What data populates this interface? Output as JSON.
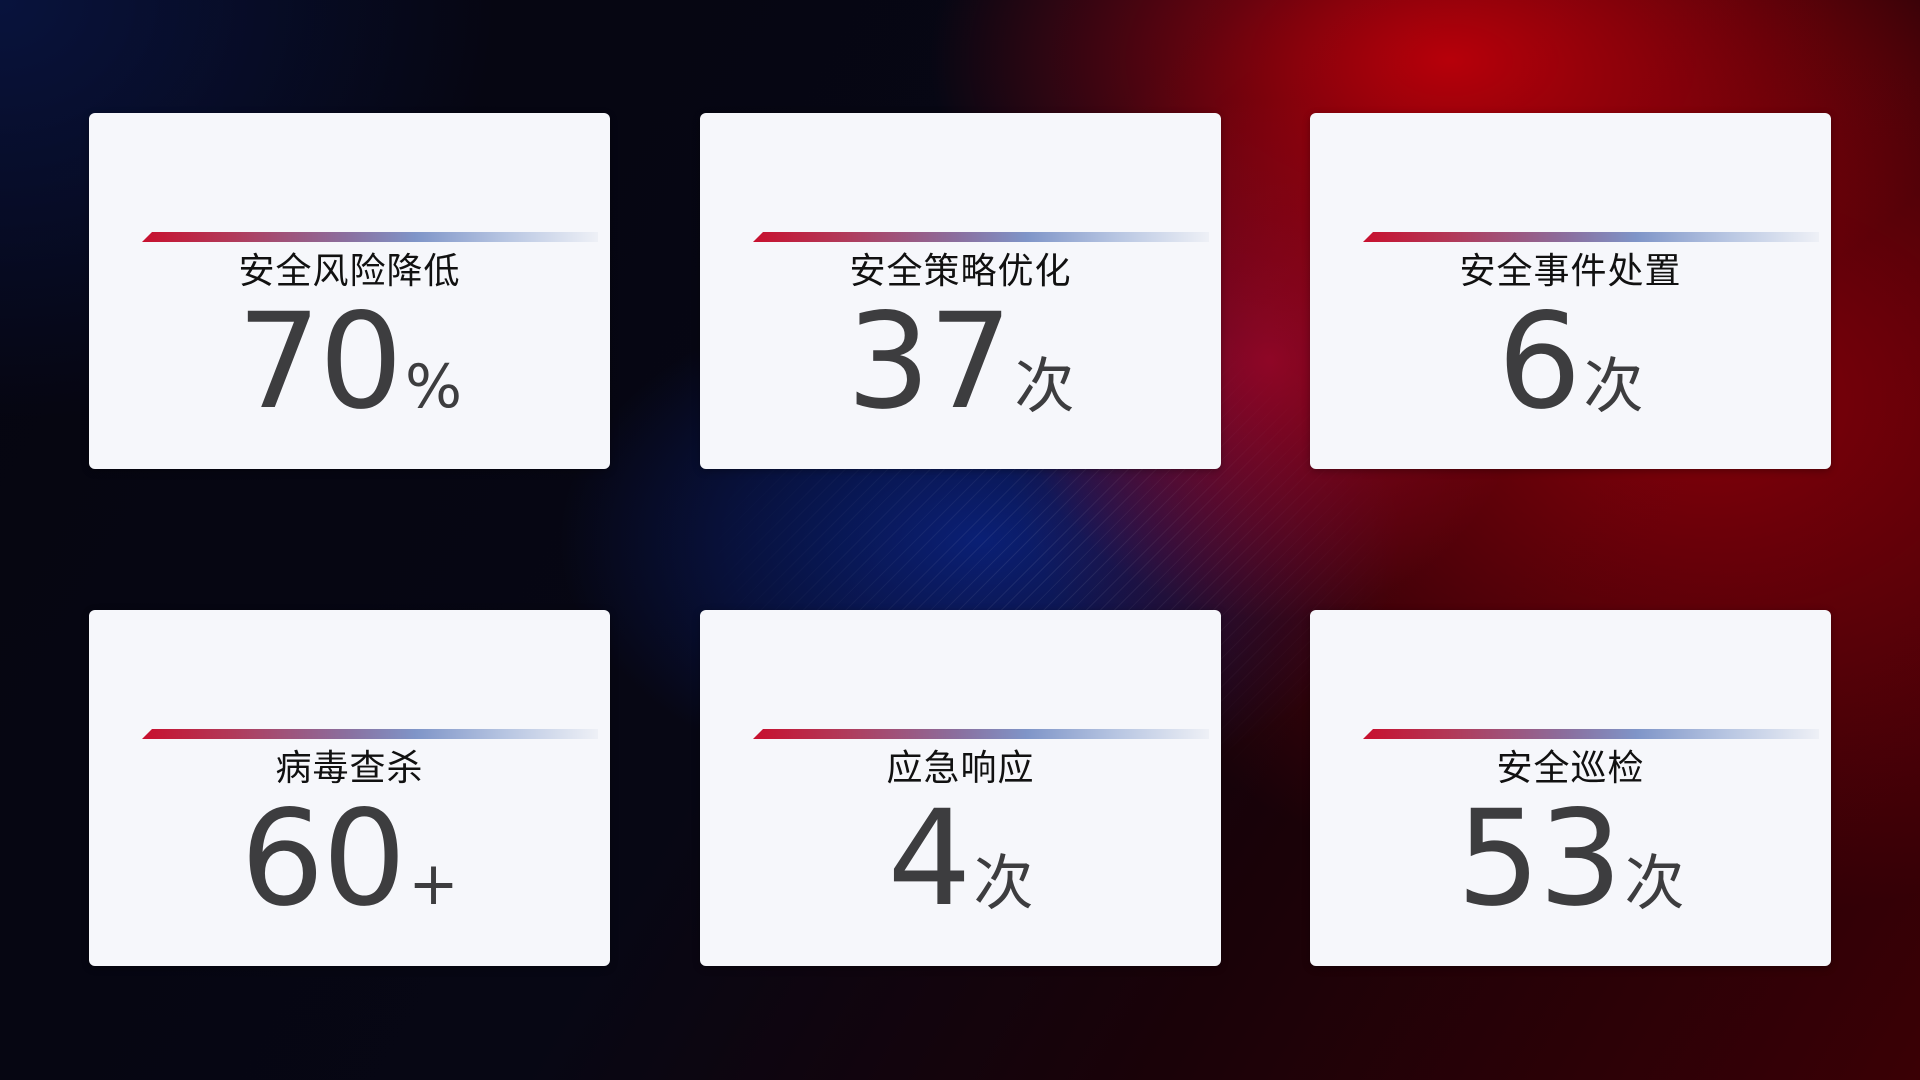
{
  "cards": [
    {
      "title": "安全风险降低",
      "value": "70",
      "unit": "%"
    },
    {
      "title": "安全策略优化",
      "value": "37",
      "unit": "次"
    },
    {
      "title": "安全事件处置",
      "value": "6",
      "unit": "次"
    },
    {
      "title": "病毒查杀",
      "value": "60",
      "unit": "+"
    },
    {
      "title": "应急响应",
      "value": "4",
      "unit": "次"
    },
    {
      "title": "安全巡检",
      "value": "53",
      "unit": "次"
    }
  ],
  "colors": {
    "accent_red": "#c8102e",
    "accent_blue": "#7f95c8",
    "card_bg": "#f6f7fb",
    "value_text": "#3d3d3f"
  }
}
